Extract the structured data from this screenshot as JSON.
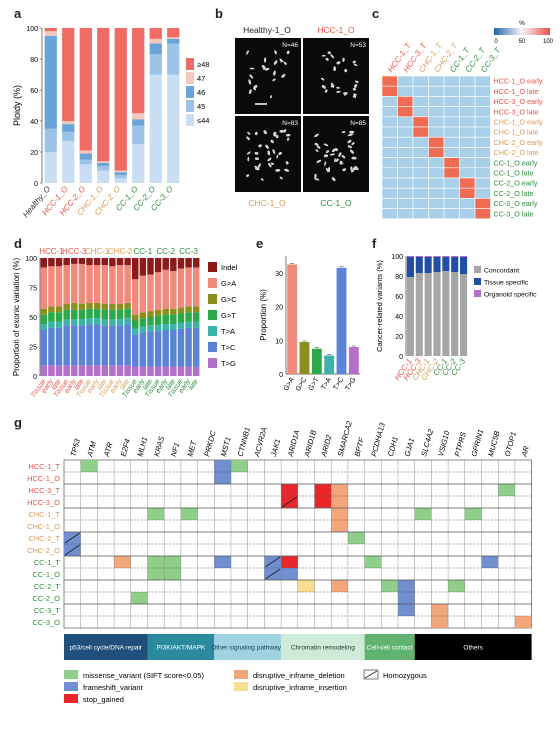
{
  "panels": {
    "a": "a",
    "b": "b",
    "c": "c",
    "d": "d",
    "e": "e",
    "f": "f",
    "g": "g"
  },
  "panel_a": {
    "ylabel": "Ploidy (%)",
    "yticks": [
      "0",
      "20",
      "40",
      "60",
      "80",
      "100"
    ],
    "categories": [
      "Healthy_O",
      "HCC-1_O",
      "HCC-2_O",
      "CHC-1_O",
      "CHC-2_O",
      "CC-1_O",
      "CC-2_O",
      "CC-3_O"
    ],
    "category_colors": [
      "#333333",
      "#e8514a",
      "#e8514a",
      "#d99a57",
      "#d99a57",
      "#2e8b3e",
      "#2e8b3e",
      "#2e8b3e"
    ],
    "legend": [
      "≥48",
      "47",
      "46",
      "45",
      "≤44"
    ],
    "legend_colors": [
      "#ef6b63",
      "#f6c6c0",
      "#6aa3d8",
      "#9bc4e8",
      "#c9def3"
    ],
    "chart_data": {
      "type": "bar",
      "categories": [
        "Healthy_O",
        "HCC-1_O",
        "HCC-2_O",
        "CHC-1_O",
        "CHC-2_O",
        "CC-1_O",
        "CC-2_O",
        "CC-3_O"
      ],
      "series": [
        {
          "name": "≤44",
          "values": [
            20,
            27,
            12,
            8,
            3,
            25,
            70,
            70
          ]
        },
        {
          "name": "45",
          "values": [
            15,
            6,
            3,
            3,
            2,
            12,
            13,
            20
          ]
        },
        {
          "name": "46",
          "values": [
            60,
            5,
            4,
            2,
            2,
            4,
            7,
            3
          ]
        },
        {
          "name": "47",
          "values": [
            3,
            2,
            2,
            1,
            1,
            4,
            3,
            1
          ]
        },
        {
          "name": "≥48",
          "values": [
            2,
            60,
            79,
            86,
            92,
            55,
            7,
            6
          ]
        }
      ],
      "ylim": [
        0,
        100
      ]
    }
  },
  "panel_b": {
    "labels": [
      "Healthy-1_O",
      "HCC-1_O",
      "CHC-1_O",
      "CC-1_O"
    ],
    "label_colors": [
      "#222222",
      "#e8514a",
      "#d99a57",
      "#2e8b3e"
    ],
    "counts": [
      "N=46",
      "N=53",
      "N=83",
      "N=85"
    ]
  },
  "panel_c": {
    "col_labels": [
      "HCC-1_T",
      "HCC-3_T",
      "CHC-1_T",
      "CHC-2_T",
      "CC-1_T",
      "CC-2_T",
      "CC-3_T"
    ],
    "col_colors": [
      "#e8514a",
      "#e8514a",
      "#d99a57",
      "#d99a57",
      "#2e8b3e",
      "#2e8b3e",
      "#2e8b3e"
    ],
    "row_labels": [
      "HCC-1_O early",
      "HCC-1_O late",
      "HCC-3_O early",
      "HCC-3_O late",
      "CHC-1_O early",
      "CHC-1_O late",
      "CHC-2_O early",
      "CHC-2_O late",
      "CC-1_O early",
      "CC-1_O late",
      "CC-2_O early",
      "CC-2_O late",
      "CC-3_O early",
      "CC-3_O late"
    ],
    "row_colors": [
      "#e8514a",
      "#e8514a",
      "#e8514a",
      "#e8514a",
      "#d99a57",
      "#d99a57",
      "#d99a57",
      "#d99a57",
      "#2e8b3e",
      "#2e8b3e",
      "#2e8b3e",
      "#2e8b3e",
      "#2e8b3e",
      "#2e8b3e"
    ],
    "scale_title": "%",
    "scale_ticks": [
      "0",
      "50",
      "100"
    ]
  },
  "panel_d": {
    "ylabel": "Proportion of exonic variation (%)",
    "yticks": [
      "0",
      "25",
      "50",
      "75",
      "100"
    ],
    "groups": [
      "HCC-1",
      "HCC-3",
      "CHC-1",
      "CHC-2",
      "CC-1",
      "CC-2",
      "CC-3"
    ],
    "group_colors": [
      "#e8514a",
      "#e8514a",
      "#d99a57",
      "#d99a57",
      "#2e8b3e",
      "#2e8b3e",
      "#2e8b3e"
    ],
    "bar_labels": [
      "Tissue",
      "early",
      "late",
      "Tissue",
      "early",
      "late",
      "Tissue",
      "early",
      "late",
      "Tissue",
      "early",
      "late",
      "Tissue",
      "early",
      "late",
      "Tissue",
      "early",
      "late",
      "Tissue",
      "early",
      "late"
    ],
    "legend": [
      "Indel",
      "G>A",
      "G>C",
      "G>T",
      "T>A",
      "T>C",
      "T>G"
    ],
    "legend_colors": [
      "#8b1a1a",
      "#f08a7a",
      "#8a8f1e",
      "#2aa84a",
      "#3bb3a8",
      "#5b84d6",
      "#b36fc9"
    ],
    "chart_data": {
      "type": "bar",
      "series": [
        {
          "name": "Indel",
          "values": [
            8,
            7,
            7,
            6,
            5,
            5,
            6,
            6,
            6,
            7,
            6,
            6,
            18,
            15,
            14,
            12,
            10,
            11,
            9,
            8,
            8
          ]
        },
        {
          "name": "G>A",
          "values": [
            35,
            34,
            34,
            33,
            33,
            34,
            32,
            32,
            33,
            32,
            33,
            32,
            30,
            31,
            31,
            32,
            33,
            32,
            33,
            33,
            33
          ]
        },
        {
          "name": "G>C",
          "values": [
            5,
            5,
            5,
            5,
            6,
            5,
            5,
            5,
            5,
            5,
            5,
            5,
            5,
            5,
            5,
            5,
            5,
            5,
            5,
            5,
            5
          ]
        },
        {
          "name": "G>T",
          "values": [
            8,
            8,
            8,
            8,
            8,
            8,
            8,
            8,
            8,
            8,
            8,
            8,
            7,
            7,
            7,
            8,
            8,
            8,
            8,
            8,
            8
          ]
        },
        {
          "name": "T>A",
          "values": [
            5,
            5,
            5,
            5,
            5,
            5,
            5,
            5,
            5,
            5,
            5,
            5,
            5,
            5,
            5,
            5,
            5,
            5,
            5,
            5,
            5
          ]
        },
        {
          "name": "T>C",
          "values": [
            30,
            32,
            32,
            34,
            34,
            34,
            35,
            35,
            34,
            34,
            34,
            35,
            27,
            29,
            30,
            30,
            31,
            31,
            32,
            33,
            33
          ]
        },
        {
          "name": "T>G",
          "values": [
            9,
            9,
            9,
            9,
            9,
            9,
            9,
            9,
            9,
            9,
            9,
            9,
            8,
            8,
            8,
            8,
            8,
            8,
            8,
            8,
            8
          ]
        }
      ],
      "ylim": [
        0,
        100
      ]
    }
  },
  "panel_e": {
    "ylabel": "Proportion (%)",
    "yticks": [
      "0",
      "10",
      "20",
      "30"
    ],
    "chart_data": {
      "type": "bar",
      "categories": [
        "G>A",
        "G>C",
        "G>T",
        "T>A",
        "T>C",
        "T>G"
      ],
      "values": [
        32.5,
        9.5,
        7.5,
        5.5,
        31.5,
        8
      ],
      "colors": [
        "#f08a7a",
        "#8a8f1e",
        "#2aa84a",
        "#3bb3a8",
        "#5b84d6",
        "#b36fc9"
      ],
      "ylim": [
        0,
        35
      ]
    }
  },
  "panel_f": {
    "ylabel": "Cancer-related variants (%)",
    "yticks": [
      "0",
      "20",
      "40",
      "60",
      "80",
      "100"
    ],
    "categories": [
      "HCC-1",
      "HCC-3",
      "CHC-1",
      "CHC-2",
      "CC-1",
      "CC-2",
      "CC-3"
    ],
    "category_colors": [
      "#e8514a",
      "#e8514a",
      "#d99a57",
      "#d99a57",
      "#2e8b3e",
      "#2e8b3e",
      "#2e8b3e"
    ],
    "legend": [
      "Concordant",
      "Tissue specific",
      "Organoid specific"
    ],
    "legend_colors": [
      "#a6a6a6",
      "#1f4ea3",
      "#b36fc9"
    ],
    "chart_data": {
      "type": "bar",
      "categories": [
        "HCC-1",
        "HCC-3",
        "CHC-1",
        "CHC-2",
        "CC-1",
        "CC-2",
        "CC-3"
      ],
      "series": [
        {
          "name": "Concordant",
          "values": [
            79,
            83,
            83,
            84,
            85,
            84,
            82
          ]
        },
        {
          "name": "Tissue specific",
          "values": [
            20,
            16,
            16,
            15,
            14,
            15,
            17
          ]
        },
        {
          "name": "Organoid specific",
          "values": [
            1,
            1,
            1,
            1,
            1,
            1,
            1
          ]
        }
      ],
      "ylim": [
        0,
        100
      ]
    }
  },
  "panel_g": {
    "genes": [
      "TP53",
      "ATM",
      "ATR",
      "E2F4",
      "MLH1",
      "KRAS",
      "NF1",
      "MET",
      "PRKDC",
      "MST1",
      "CTNNB1",
      "ACVR2A",
      "JAK1",
      "ARID1A",
      "ARID1B",
      "ARID2",
      "SMARCA2",
      "BPTF",
      "PCDHA13",
      "CDH1",
      "GJA1",
      "SLC4A2",
      "VSIG10",
      "PTPRS",
      "GPRIN1",
      "MUC5B",
      "OTOP1",
      "AR"
    ],
    "samples": [
      "HCC-1_T",
      "HCC-1_O",
      "HCC-3_T",
      "HCC-3_O",
      "CHC-1_T",
      "CHC-1_O",
      "CHC-2_T",
      "CHC-2_O",
      "CC-1_T",
      "CC-1_O",
      "CC-2_T",
      "CC-2_O",
      "CC-3_T",
      "CC-3_O"
    ],
    "sample_colors": [
      "#e8514a",
      "#e8514a",
      "#e8514a",
      "#e8514a",
      "#d99a57",
      "#d99a57",
      "#d99a57",
      "#d99a57",
      "#2e8b3e",
      "#2e8b3e",
      "#2e8b3e",
      "#2e8b3e",
      "#2e8b3e",
      "#2e8b3e"
    ],
    "cells": [
      {
        "r": 0,
        "c": 1,
        "t": "missense"
      },
      {
        "r": 0,
        "c": 9,
        "t": "frameshift"
      },
      {
        "r": 0,
        "c": 10,
        "t": "missense"
      },
      {
        "r": 1,
        "c": 9,
        "t": "frameshift"
      },
      {
        "r": 2,
        "c": 13,
        "t": "stop"
      },
      {
        "r": 2,
        "c": 15,
        "t": "stop"
      },
      {
        "r": 2,
        "c": 16,
        "t": "deletion"
      },
      {
        "r": 2,
        "c": 26,
        "t": "missense"
      },
      {
        "r": 3,
        "c": 13,
        "t": "stop",
        "h": true
      },
      {
        "r": 3,
        "c": 15,
        "t": "stop"
      },
      {
        "r": 3,
        "c": 16,
        "t": "deletion"
      },
      {
        "r": 4,
        "c": 5,
        "t": "missense"
      },
      {
        "r": 4,
        "c": 7,
        "t": "missense"
      },
      {
        "r": 4,
        "c": 16,
        "t": "deletion"
      },
      {
        "r": 4,
        "c": 21,
        "t": "missense"
      },
      {
        "r": 4,
        "c": 24,
        "t": "missense"
      },
      {
        "r": 5,
        "c": 16,
        "t": "deletion"
      },
      {
        "r": 6,
        "c": 0,
        "t": "frameshift",
        "h": true
      },
      {
        "r": 6,
        "c": 17,
        "t": "missense"
      },
      {
        "r": 7,
        "c": 0,
        "t": "frameshift",
        "h": true
      },
      {
        "r": 8,
        "c": 3,
        "t": "deletion"
      },
      {
        "r": 8,
        "c": 5,
        "t": "missense"
      },
      {
        "r": 8,
        "c": 6,
        "t": "missense"
      },
      {
        "r": 8,
        "c": 9,
        "t": "frameshift"
      },
      {
        "r": 8,
        "c": 12,
        "t": "frameshift",
        "h": true
      },
      {
        "r": 8,
        "c": 13,
        "t": "stop"
      },
      {
        "r": 8,
        "c": 18,
        "t": "missense"
      },
      {
        "r": 8,
        "c": 25,
        "t": "frameshift"
      },
      {
        "r": 9,
        "c": 5,
        "t": "missense"
      },
      {
        "r": 9,
        "c": 6,
        "t": "missense"
      },
      {
        "r": 9,
        "c": 12,
        "t": "frameshift",
        "h": true
      },
      {
        "r": 9,
        "c": 13,
        "t": "frameshift"
      },
      {
        "r": 10,
        "c": 14,
        "t": "insertion"
      },
      {
        "r": 10,
        "c": 16,
        "t": "deletion"
      },
      {
        "r": 10,
        "c": 19,
        "t": "missense"
      },
      {
        "r": 10,
        "c": 20,
        "t": "frameshift"
      },
      {
        "r": 10,
        "c": 23,
        "t": "missense"
      },
      {
        "r": 11,
        "c": 4,
        "t": "missense"
      },
      {
        "r": 11,
        "c": 20,
        "t": "frameshift"
      },
      {
        "r": 12,
        "c": 20,
        "t": "frameshift"
      },
      {
        "r": 12,
        "c": 22,
        "t": "deletion"
      },
      {
        "r": 13,
        "c": 22,
        "t": "deletion"
      },
      {
        "r": 13,
        "c": 27,
        "t": "deletion"
      }
    ],
    "pathways": [
      {
        "label": "p53/cell cycle/DNA repair",
        "color": "#1f4f7a",
        "text": "#ffffff",
        "from": 0,
        "to": 4
      },
      {
        "label": "PI3K/AKT/MAPK",
        "color": "#2b8a9e",
        "text": "#ffffff",
        "from": 5,
        "to": 8
      },
      {
        "label": "Other signaling pathways",
        "color": "#9fd3e0",
        "text": "#1a3a5a",
        "from": 9,
        "to": 12
      },
      {
        "label": "Chromatin remodeling",
        "color": "#cdebd8",
        "text": "#1a3a2a",
        "from": 13,
        "to": 17
      },
      {
        "label": "Cell-cell contact",
        "color": "#62b36f",
        "text": "#ffffff",
        "from": 18,
        "to": 20
      },
      {
        "label": "Others",
        "color": "#000000",
        "text": "#ffffff",
        "from": 21,
        "to": 27
      }
    ],
    "type_colors": {
      "missense": "#8fcf8a",
      "frameshift": "#6f8fd0",
      "stop": "#e8262b",
      "deletion": "#f2a67c",
      "insertion": "#f7df8f"
    },
    "legend": {
      "missense": "missense_variant (SIFT score<0.05)",
      "frameshift": "frameshift_variant",
      "stop": "stop_gained",
      "deletion": "disruptive_inframe_deletion",
      "insertion": "disruptive_inframe_insertion",
      "homozygous": "Homozygous"
    }
  }
}
